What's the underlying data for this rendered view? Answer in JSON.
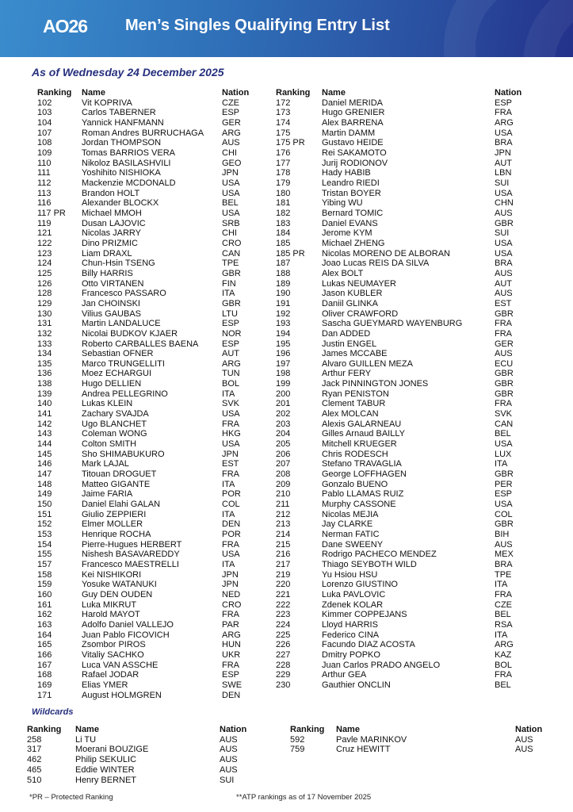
{
  "header": {
    "logo_text": "AO26",
    "title": "Men’s Singles Qualifying Entry List",
    "brand_color": "#2f6fb8"
  },
  "date_line": "As of Wednesday 24 December 2025",
  "columns": {
    "ranking": "Ranking",
    "name": "Name",
    "nation": "Nation"
  },
  "main_left": [
    [
      "102",
      "Vit KOPRIVA",
      "CZE"
    ],
    [
      "103",
      "Carlos TABERNER",
      "ESP"
    ],
    [
      "104",
      "Yannick HANFMANN",
      "GER"
    ],
    [
      "107",
      "Roman Andres BURRUCHAGA",
      "ARG"
    ],
    [
      "108",
      "Jordan THOMPSON",
      "AUS"
    ],
    [
      "109",
      "Tomas BARRIOS VERA",
      "CHI"
    ],
    [
      "110",
      "Nikoloz BASILASHVILI",
      "GEO"
    ],
    [
      "111",
      "Yoshihito NISHIOKA",
      "JPN"
    ],
    [
      "112",
      "Mackenzie MCDONALD",
      "USA"
    ],
    [
      "113",
      "Brandon HOLT",
      "USA"
    ],
    [
      "116",
      "Alexander BLOCKX",
      "BEL"
    ],
    [
      "117 PR",
      "Michael MMOH",
      "USA"
    ],
    [
      "119",
      "Dusan LAJOVIC",
      "SRB"
    ],
    [
      "121",
      "Nicolas JARRY",
      "CHI"
    ],
    [
      "122",
      "Dino PRIZMIC",
      "CRO"
    ],
    [
      "123",
      "Liam DRAXL",
      "CAN"
    ],
    [
      "124",
      "Chun-Hsin TSENG",
      "TPE"
    ],
    [
      "125",
      "Billy HARRIS",
      "GBR"
    ],
    [
      "126",
      "Otto VIRTANEN",
      "FIN"
    ],
    [
      "128",
      "Francesco PASSARO",
      "ITA"
    ],
    [
      "129",
      "Jan CHOINSKI",
      "GBR"
    ],
    [
      "130",
      "Vilius GAUBAS",
      "LTU"
    ],
    [
      "131",
      "Martin LANDALUCE",
      "ESP"
    ],
    [
      "132",
      "Nicolai BUDKOV KJAER",
      "NOR"
    ],
    [
      "133",
      "Roberto CARBALLES BAENA",
      "ESP"
    ],
    [
      "134",
      "Sebastian OFNER",
      "AUT"
    ],
    [
      "135",
      "Marco TRUNGELLITI",
      "ARG"
    ],
    [
      "136",
      "Moez ECHARGUI",
      "TUN"
    ],
    [
      "138",
      "Hugo DELLIEN",
      "BOL"
    ],
    [
      "139",
      "Andrea PELLEGRINO",
      "ITA"
    ],
    [
      "140",
      "Lukas KLEIN",
      "SVK"
    ],
    [
      "141",
      "Zachary SVAJDA",
      "USA"
    ],
    [
      "142",
      "Ugo BLANCHET",
      "FRA"
    ],
    [
      "143",
      "Coleman WONG",
      "HKG"
    ],
    [
      "144",
      "Colton SMITH",
      "USA"
    ],
    [
      "145",
      "Sho SHIMABUKURO",
      "JPN"
    ],
    [
      "146",
      "Mark LAJAL",
      "EST"
    ],
    [
      "147",
      "Titouan DROGUET",
      "FRA"
    ],
    [
      "148",
      "Matteo GIGANTE",
      "ITA"
    ],
    [
      "149",
      "Jaime FARIA",
      "POR"
    ],
    [
      "150",
      "Daniel Elahi GALAN",
      "COL"
    ],
    [
      "151",
      "Giulio ZEPPIERI",
      "ITA"
    ],
    [
      "152",
      "Elmer MOLLER",
      "DEN"
    ],
    [
      "153",
      "Henrique ROCHA",
      "POR"
    ],
    [
      "154",
      "Pierre-Hugues HERBERT",
      "FRA"
    ],
    [
      "155",
      "Nishesh BASAVAREDDY",
      "USA"
    ],
    [
      "157",
      "Francesco MAESTRELLI",
      "ITA"
    ],
    [
      "158",
      "Kei NISHIKORI",
      "JPN"
    ],
    [
      "159",
      "Yosuke WATANUKI",
      "JPN"
    ],
    [
      "160",
      "Guy DEN OUDEN",
      "NED"
    ],
    [
      "161",
      "Luka MIKRUT",
      "CRO"
    ],
    [
      "162",
      "Harold MAYOT",
      "FRA"
    ],
    [
      "163",
      "Adolfo Daniel VALLEJO",
      "PAR"
    ],
    [
      "164",
      "Juan Pablo FICOVICH",
      "ARG"
    ],
    [
      "165",
      "Zsombor PIROS",
      "HUN"
    ],
    [
      "166",
      "Vitaliy SACHKO",
      "UKR"
    ],
    [
      "167",
      "Luca VAN ASSCHE",
      "FRA"
    ],
    [
      "168",
      "Rafael JODAR",
      "ESP"
    ],
    [
      "169",
      "Elias YMER",
      "SWE"
    ],
    [
      "171",
      "August HOLMGREN",
      "DEN"
    ]
  ],
  "main_right": [
    [
      "172",
      "Daniel MERIDA",
      "ESP"
    ],
    [
      "173",
      "Hugo GRENIER",
      "FRA"
    ],
    [
      "174",
      "Alex BARRENA",
      "ARG"
    ],
    [
      "175",
      "Martin DAMM",
      "USA"
    ],
    [
      "175 PR",
      "Gustavo HEIDE",
      "BRA"
    ],
    [
      "176",
      "Rei SAKAMOTO",
      "JPN"
    ],
    [
      "177",
      "Jurij RODIONOV",
      "AUT"
    ],
    [
      "178",
      "Hady HABIB",
      "LBN"
    ],
    [
      "179",
      "Leandro RIEDI",
      "SUI"
    ],
    [
      "180",
      "Tristan BOYER",
      "USA"
    ],
    [
      "181",
      "Yibing WU",
      "CHN"
    ],
    [
      "182",
      "Bernard TOMIC",
      "AUS"
    ],
    [
      "183",
      "Daniel EVANS",
      "GBR"
    ],
    [
      "184",
      "Jerome KYM",
      "SUI"
    ],
    [
      "185",
      "Michael ZHENG",
      "USA"
    ],
    [
      "185 PR",
      "Nicolas MORENO DE ALBORAN",
      "USA"
    ],
    [
      "187",
      "Joao Lucas REIS DA SILVA",
      "BRA"
    ],
    [
      "188",
      "Alex BOLT",
      "AUS"
    ],
    [
      "189",
      "Lukas NEUMAYER",
      "AUT"
    ],
    [
      "190",
      "Jason KUBLER",
      "AUS"
    ],
    [
      "191",
      "Daniil GLINKA",
      "EST"
    ],
    [
      "192",
      "Oliver CRAWFORD",
      "GBR"
    ],
    [
      "193",
      "Sascha GUEYMARD WAYENBURG",
      "FRA"
    ],
    [
      "194",
      "Dan ADDED",
      "FRA"
    ],
    [
      "195",
      "Justin ENGEL",
      "GER"
    ],
    [
      "196",
      "James MCCABE",
      "AUS"
    ],
    [
      "197",
      "Alvaro GUILLEN MEZA",
      "ECU"
    ],
    [
      "198",
      "Arthur FERY",
      "GBR"
    ],
    [
      "199",
      "Jack PINNINGTON JONES",
      "GBR"
    ],
    [
      "200",
      "Ryan PENISTON",
      "GBR"
    ],
    [
      "201",
      "Clement TABUR",
      "FRA"
    ],
    [
      "202",
      "Alex MOLCAN",
      "SVK"
    ],
    [
      "203",
      "Alexis GALARNEAU",
      "CAN"
    ],
    [
      "204",
      "Gilles Arnaud BAILLY",
      "BEL"
    ],
    [
      "205",
      "Mitchell KRUEGER",
      "USA"
    ],
    [
      "206",
      "Chris RODESCH",
      "LUX"
    ],
    [
      "207",
      "Stefano TRAVAGLIA",
      "ITA"
    ],
    [
      "208",
      "George LOFFHAGEN",
      "GBR"
    ],
    [
      "209",
      "Gonzalo BUENO",
      "PER"
    ],
    [
      "210",
      "Pablo LLAMAS RUIZ",
      "ESP"
    ],
    [
      "211",
      "Murphy CASSONE",
      "USA"
    ],
    [
      "212",
      "Nicolas MEJIA",
      "COL"
    ],
    [
      "213",
      "Jay CLARKE",
      "GBR"
    ],
    [
      "214",
      "Nerman FATIC",
      "BIH"
    ],
    [
      "215",
      "Dane SWEENY",
      "AUS"
    ],
    [
      "216",
      "Rodrigo PACHECO MENDEZ",
      "MEX"
    ],
    [
      "217",
      "Thiago SEYBOTH WILD",
      "BRA"
    ],
    [
      "219",
      "Yu Hsiou HSU",
      "TPE"
    ],
    [
      "220",
      "Lorenzo GIUSTINO",
      "ITA"
    ],
    [
      "221",
      "Luka PAVLOVIC",
      "FRA"
    ],
    [
      "222",
      "Zdenek KOLAR",
      "CZE"
    ],
    [
      "223",
      "Kimmer COPPEJANS",
      "BEL"
    ],
    [
      "224",
      "Lloyd HARRIS",
      "RSA"
    ],
    [
      "225",
      "Federico CINA",
      "ITA"
    ],
    [
      "226",
      "Facundo DIAZ ACOSTA",
      "ARG"
    ],
    [
      "227",
      "Dmitry POPKO",
      "KAZ"
    ],
    [
      "228",
      "Juan Carlos PRADO ANGELO",
      "BOL"
    ],
    [
      "229",
      "Arthur GEA",
      "FRA"
    ],
    [
      "230",
      "Gauthier ONCLIN",
      "BEL"
    ]
  ],
  "wildcards": {
    "title": "Wildcards",
    "left": [
      [
        "258",
        "Li TU",
        "AUS"
      ],
      [
        "317",
        "Moerani BOUZIGE",
        "AUS"
      ],
      [
        "462",
        "Philip SEKULIC",
        "AUS"
      ],
      [
        "465",
        "Eddie WINTER",
        "AUS"
      ],
      [
        "510",
        "Henry BERNET",
        "SUI"
      ]
    ],
    "right": [
      [
        "592",
        "Pavle MARINKOV",
        "AUS"
      ],
      [
        "759",
        "Cruz HEWITT",
        "AUS"
      ]
    ]
  },
  "footnotes": {
    "pr": "*PR – Protected Ranking",
    "atp": "**ATP rankings as of 17 November 2025"
  }
}
